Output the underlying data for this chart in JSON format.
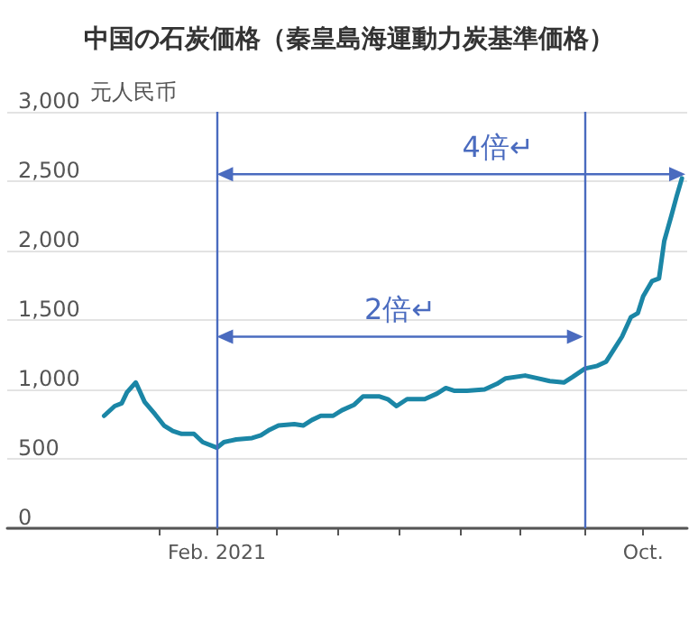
{
  "chart_data": {
    "type": "line",
    "title": "中国の石炭価格（秦皇島海運動力炭基準価格）",
    "ylabel": "元人民币",
    "x": [
      "2020-11-29",
      "2020-12-05",
      "2020-12-09",
      "2020-12-12",
      "2020-12-17",
      "2020-12-22",
      "2020-12-28",
      "2021-01-02",
      "2021-01-07",
      "2021-01-12",
      "2021-01-19",
      "2021-01-24",
      "2021-02-01",
      "2021-02-05",
      "2021-02-12",
      "2021-02-21",
      "2021-02-26",
      "2021-03-03",
      "2021-03-08",
      "2021-03-17",
      "2021-03-22",
      "2021-03-27",
      "2021-04-01",
      "2021-04-08",
      "2021-04-13",
      "2021-04-20",
      "2021-04-25",
      "2021-05-04",
      "2021-05-09",
      "2021-05-14",
      "2021-05-20",
      "2021-05-30",
      "2021-06-06",
      "2021-06-11",
      "2021-06-16",
      "2021-06-23",
      "2021-07-03",
      "2021-07-10",
      "2021-07-15",
      "2021-07-26",
      "2021-08-02",
      "2021-08-09",
      "2021-08-17",
      "2021-08-22",
      "2021-08-29",
      "2021-09-05",
      "2021-09-10",
      "2021-09-14",
      "2021-09-19",
      "2021-09-24",
      "2021-09-28",
      "2021-10-01",
      "2021-10-06",
      "2021-10-10",
      "2021-10-13",
      "2021-10-17",
      "2021-10-20",
      "2021-10-23"
    ],
    "series": [
      {
        "color": "#1b86a6",
        "values": [
          810,
          880,
          900,
          980,
          1050,
          910,
          820,
          740,
          700,
          680,
          680,
          620,
          580,
          620,
          640,
          650,
          670,
          710,
          740,
          750,
          740,
          780,
          810,
          810,
          850,
          890,
          950,
          950,
          930,
          880,
          930,
          930,
          970,
          1010,
          990,
          990,
          1000,
          1040,
          1080,
          1100,
          1080,
          1060,
          1050,
          1090,
          1150,
          1170,
          1200,
          1280,
          1380,
          1520,
          1550,
          1670,
          1780,
          1800,
          2070,
          2250,
          2390,
          2520
        ]
      }
    ],
    "xlim": [
      "2020-10-05",
      "2021-10-26"
    ],
    "xticks": [
      {
        "value": "2020-12-30",
        "label": null
      },
      {
        "value": "2021-02-01",
        "label": "Feb. 2021"
      },
      {
        "value": "2021-03-07",
        "label": null
      },
      {
        "value": "2021-04-11",
        "label": null
      },
      {
        "value": "2021-05-15",
        "label": null
      },
      {
        "value": "2021-06-19",
        "label": null
      },
      {
        "value": "2021-07-23",
        "label": null
      },
      {
        "value": "2021-08-29",
        "label": null
      },
      {
        "value": "2021-10-01",
        "label": "Oct."
      }
    ],
    "ylim": [
      0,
      3000
    ],
    "yticks": [
      0,
      {
        "value": 500,
        "label": "500"
      },
      {
        "value": 1000,
        "label": "1,000"
      },
      {
        "value": 1500,
        "label": "1,500"
      },
      {
        "value": 2000,
        "label": "2,000"
      },
      {
        "value": 2500,
        "label": "2,500"
      },
      {
        "value": 3000,
        "label": "3,000"
      }
    ],
    "ref_lines": [
      {
        "axis": "x",
        "value": "2021-02-01",
        "color": "#4a6bbf"
      },
      {
        "axis": "x",
        "value": "2021-08-29",
        "color": "#4a6bbf"
      }
    ],
    "annotations": [
      "4倍↵",
      "2倍↵"
    ],
    "grid": "y",
    "marker": "none",
    "line_style": "solid"
  }
}
